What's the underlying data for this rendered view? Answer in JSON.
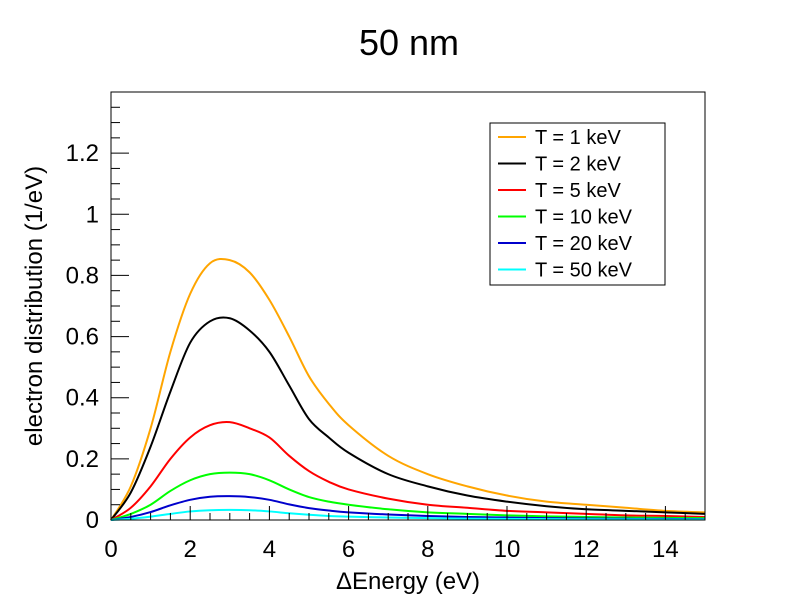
{
  "chart_data": {
    "type": "line",
    "title": "50 nm",
    "xlabel": "ΔEnergy (eV)",
    "ylabel": "electron distribution (1/eV)",
    "xlim": [
      0,
      15
    ],
    "ylim": [
      0,
      1.4
    ],
    "xticks": [
      0,
      2,
      4,
      6,
      8,
      10,
      12,
      14
    ],
    "xtick_labels": [
      "0",
      "2",
      "4",
      "6",
      "8",
      "10",
      "12",
      "14"
    ],
    "yticks": [
      0,
      0.2,
      0.4,
      0.6,
      0.8,
      1,
      1.2
    ],
    "ytick_labels": [
      "0",
      "0.2",
      "0.4",
      "0.6",
      "0.8",
      "1",
      "1.2"
    ],
    "grid": false,
    "legend_position": "top-right",
    "x": [
      0,
      0.5,
      1,
      1.5,
      2,
      2.5,
      3,
      3.5,
      4,
      4.5,
      5,
      5.5,
      6,
      7,
      8,
      9,
      10,
      11,
      12,
      13,
      14,
      15
    ],
    "series": [
      {
        "name": "T = 1 keV",
        "color": "#ffa500",
        "values": [
          0.0,
          0.11,
          0.3,
          0.55,
          0.74,
          0.84,
          0.85,
          0.81,
          0.72,
          0.6,
          0.47,
          0.38,
          0.31,
          0.21,
          0.15,
          0.11,
          0.08,
          0.06,
          0.05,
          0.04,
          0.03,
          0.025
        ]
      },
      {
        "name": "T = 2 keV",
        "color": "#000000",
        "values": [
          0.0,
          0.09,
          0.24,
          0.42,
          0.58,
          0.65,
          0.66,
          0.62,
          0.55,
          0.44,
          0.33,
          0.27,
          0.22,
          0.15,
          0.11,
          0.08,
          0.06,
          0.045,
          0.035,
          0.03,
          0.025,
          0.02
        ]
      },
      {
        "name": "T = 5 keV",
        "color": "#ff0000",
        "values": [
          0.0,
          0.04,
          0.11,
          0.2,
          0.27,
          0.31,
          0.32,
          0.3,
          0.27,
          0.21,
          0.16,
          0.125,
          0.1,
          0.07,
          0.05,
          0.04,
          0.03,
          0.025,
          0.02,
          0.015,
          0.013,
          0.01
        ]
      },
      {
        "name": "T = 10 keV",
        "color": "#00ff00",
        "values": [
          0.0,
          0.02,
          0.05,
          0.095,
          0.13,
          0.15,
          0.155,
          0.15,
          0.13,
          0.1,
          0.075,
          0.06,
          0.05,
          0.035,
          0.025,
          0.02,
          0.015,
          0.012,
          0.01,
          0.008,
          0.007,
          0.006
        ]
      },
      {
        "name": "T = 20 keV",
        "color": "#0000cc",
        "values": [
          0.0,
          0.01,
          0.026,
          0.048,
          0.066,
          0.076,
          0.078,
          0.075,
          0.066,
          0.051,
          0.039,
          0.031,
          0.025,
          0.018,
          0.013,
          0.01,
          0.008,
          0.006,
          0.005,
          0.004,
          0.0035,
          0.003
        ]
      },
      {
        "name": "T = 50 keV",
        "color": "#00ffff",
        "values": [
          0.0,
          0.004,
          0.011,
          0.02,
          0.028,
          0.032,
          0.033,
          0.032,
          0.028,
          0.022,
          0.017,
          0.013,
          0.011,
          0.008,
          0.006,
          0.0045,
          0.0035,
          0.003,
          0.0025,
          0.002,
          0.0018,
          0.0015
        ]
      }
    ]
  }
}
